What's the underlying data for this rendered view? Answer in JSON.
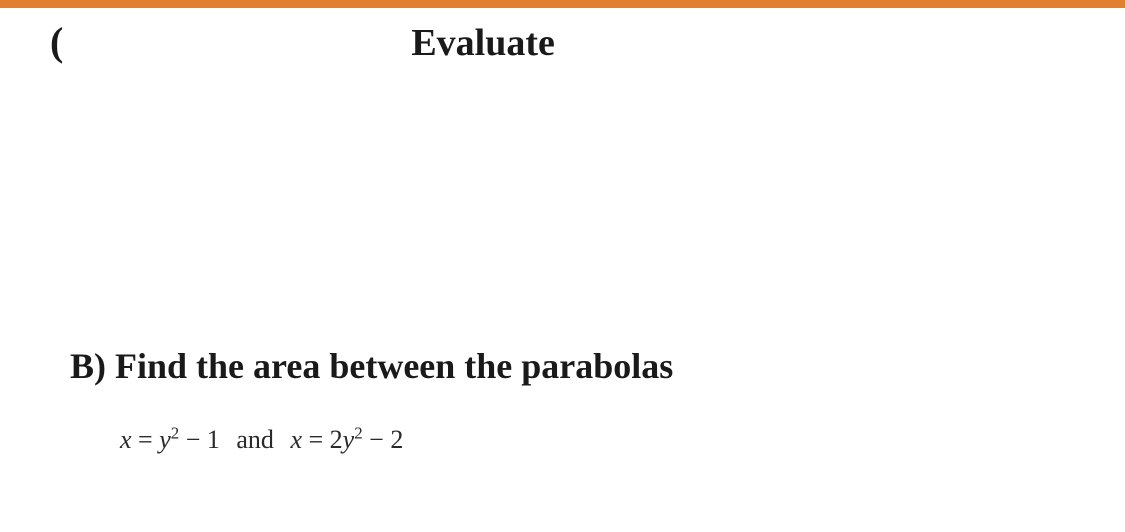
{
  "page": {
    "top_border_color": "#e08030",
    "background_color": "#ffffff",
    "text_color": "#1a1a1a"
  },
  "header": {
    "open_paren": "(",
    "title": "Evaluate",
    "title_fontsize": 38,
    "title_fontweight": "bold"
  },
  "partB": {
    "label": "B)",
    "heading_text": "Find the  area between the parabolas",
    "heading_fontsize": 36,
    "heading_fontweight": "bold",
    "equation": {
      "fontsize": 26,
      "eq1": {
        "lhs_var": "x",
        "eq_symbol": "=",
        "rhs_var": "y",
        "rhs_exp": "2",
        "rhs_op": "−",
        "rhs_const": "1"
      },
      "connector": "and",
      "eq2": {
        "lhs_var": "x",
        "eq_symbol": "=",
        "rhs_coeff": "2",
        "rhs_var": "y",
        "rhs_exp": "2",
        "rhs_op": "−",
        "rhs_const": "2"
      }
    }
  }
}
